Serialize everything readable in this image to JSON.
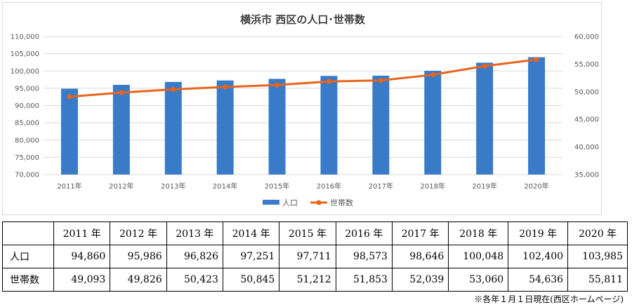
{
  "chart_data": {
    "type": "bar",
    "title": "横浜市 西区の人口･世帯数",
    "categories": [
      "2011年",
      "2012年",
      "2013年",
      "2014年",
      "2015年",
      "2016年",
      "2017年",
      "2018年",
      "2019年",
      "2020年"
    ],
    "series": [
      {
        "name": "人口",
        "kind": "bar",
        "axis": "left",
        "color": "#3a7bc8",
        "values": [
          94860,
          95986,
          96826,
          97251,
          97711,
          98573,
          98646,
          100048,
          102400,
          103985
        ]
      },
      {
        "name": "世帯数",
        "kind": "line",
        "axis": "right",
        "color": "#e8641c",
        "values": [
          49093,
          49826,
          50423,
          50845,
          51212,
          51853,
          52039,
          53060,
          54636,
          55811
        ]
      }
    ],
    "y_left": {
      "lim": [
        70000,
        110000
      ],
      "ticks": [
        "70,000",
        "75,000",
        "80,000",
        "85,000",
        "90,000",
        "95,000",
        "100,000",
        "105,000",
        "110,000"
      ]
    },
    "y_right": {
      "lim": [
        35000,
        60000
      ],
      "ticks": [
        "35,000",
        "40,000",
        "45,000",
        "50,000",
        "55,000",
        "60,000"
      ]
    },
    "grid": true,
    "legend": "bottom"
  },
  "table": {
    "headers": [
      "",
      "2011 年",
      "2012 年",
      "2013 年",
      "2014 年",
      "2015 年",
      "2016 年",
      "2017 年",
      "2018 年",
      "2019 年",
      "2020 年"
    ],
    "rows": [
      {
        "label": "人口",
        "values": [
          "94,860",
          "95,986",
          "96,826",
          "97,251",
          "97,711",
          "98,573",
          "98,646",
          "100,048",
          "102,400",
          "103,985"
        ]
      },
      {
        "label": "世帯数",
        "values": [
          "49,093",
          "49,826",
          "50,423",
          "50,845",
          "51,212",
          "51,853",
          "52,039",
          "53,060",
          "54,636",
          "55,811"
        ]
      }
    ]
  },
  "footnote": "※各年１月１日現在(西区ホームページ)"
}
